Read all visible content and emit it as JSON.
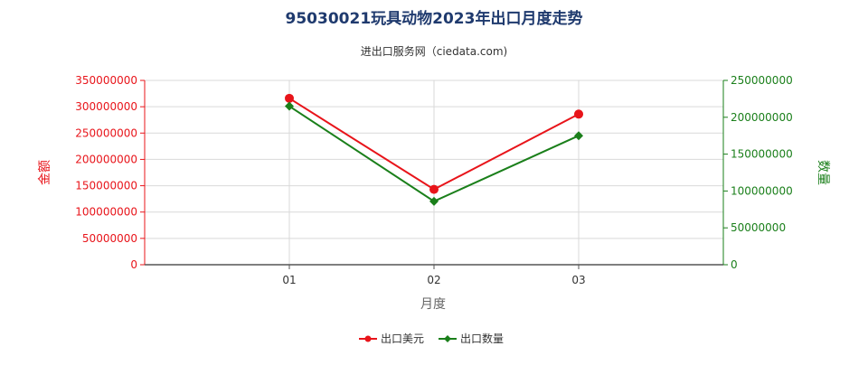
{
  "chart_data": {
    "type": "line",
    "title": "95030021玩具动物2023年出口月度走势",
    "subtitle": "进出口服务网（ciedata.com)",
    "xlabel": "月度",
    "ylabel_left": "金额",
    "ylabel_right": "数量",
    "categories": [
      "01",
      "02",
      "03"
    ],
    "y_left": {
      "min": 0,
      "max": 350000000,
      "ticks": [
        0,
        50000000,
        100000000,
        150000000,
        200000000,
        250000000,
        300000000,
        350000000
      ],
      "tick_labels": [
        "0",
        "50000000",
        "100000000",
        "150000000",
        "200000000",
        "250000000",
        "300000000",
        "350000000"
      ]
    },
    "y_right": {
      "min": 0,
      "max": 250000000,
      "ticks": [
        0,
        50000000,
        100000000,
        150000000,
        200000000,
        250000000
      ],
      "tick_labels": [
        "0",
        "50000000",
        "100000000",
        "150000000",
        "200000000",
        "250000000"
      ]
    },
    "grid": true,
    "legend_position": "bottom-center",
    "series": [
      {
        "name": "出口美元",
        "axis": "left",
        "color": "#e8141a",
        "marker": "circle",
        "values": [
          316000000,
          143000000,
          286000000
        ]
      },
      {
        "name": "出口数量",
        "axis": "right",
        "color": "#1a7f1a",
        "marker": "diamond",
        "values": [
          215000000,
          86000000,
          175000000
        ]
      }
    ],
    "colors": {
      "title": "#1f3a6e",
      "left_axis": "#e8141a",
      "right_axis": "#1a7f1a",
      "grid": "#d9d9d9",
      "axis_label": "#666666"
    }
  }
}
